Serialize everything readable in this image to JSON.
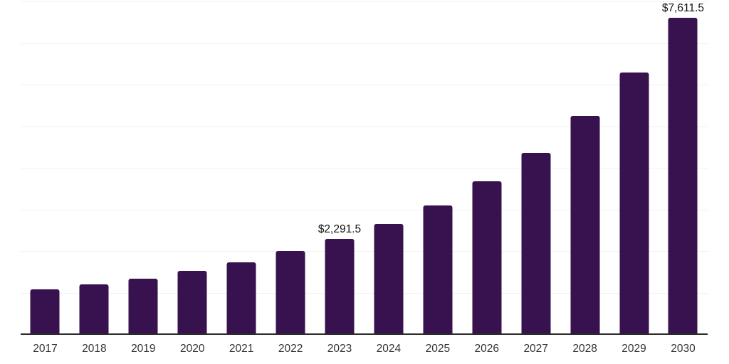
{
  "chart_data": {
    "type": "bar",
    "categories": [
      "2017",
      "2018",
      "2019",
      "2020",
      "2021",
      "2022",
      "2023",
      "2024",
      "2025",
      "2026",
      "2027",
      "2028",
      "2029",
      "2030"
    ],
    "values": [
      1075,
      1190,
      1330,
      1530,
      1730,
      1995,
      2291.5,
      2650,
      3100,
      3670,
      4355,
      5245,
      6290,
      7611.5
    ],
    "data_labels": {
      "2023": "$2,291.5",
      "2030": "$7,611.5"
    },
    "ylim": [
      0,
      8000
    ],
    "gridline_step": 1000,
    "grid": true,
    "legend": "none",
    "y_axis_tick_labels": [],
    "xlabel": "",
    "ylabel": "",
    "colors": {
      "bar": "#37124e",
      "axis_line": "#2b2b2b",
      "gridline": "#f0f0f0",
      "value_label": "#111111",
      "tick_label": "#333333",
      "background": "#ffffff"
    }
  }
}
